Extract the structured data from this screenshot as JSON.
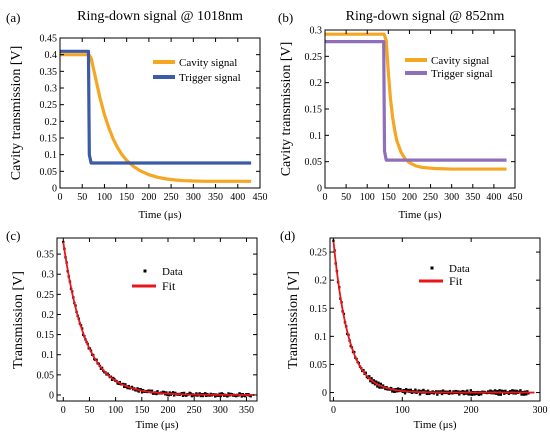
{
  "chart_data": [
    {
      "panel": "(a)",
      "type": "line",
      "title": "Ring-down signal @ 1018nm",
      "xlabel": "Time (μs)",
      "ylabel": "Cavity transmission  [V]",
      "xlim": [
        0,
        450
      ],
      "ylim": [
        0,
        0.45
      ],
      "xticks": [
        0,
        50,
        100,
        150,
        200,
        250,
        300,
        350,
        400,
        450
      ],
      "yticks": [
        0,
        0.05,
        0.1,
        0.15,
        0.2,
        0.25,
        0.3,
        0.35,
        0.4,
        0.45
      ],
      "legend_position": "top-right",
      "series": [
        {
          "name": "Cavity signal",
          "color": "#F5A623",
          "x": [
            0,
            65,
            70,
            80,
            90,
            100,
            110,
            120,
            130,
            140,
            150,
            165,
            180,
            200,
            220,
            240,
            260,
            280,
            300,
            330,
            360,
            390,
            430
          ],
          "y": [
            0.4,
            0.4,
            0.39,
            0.33,
            0.27,
            0.22,
            0.18,
            0.146,
            0.12,
            0.099,
            0.083,
            0.065,
            0.052,
            0.04,
            0.032,
            0.027,
            0.024,
            0.022,
            0.021,
            0.02,
            0.02,
            0.02,
            0.02
          ]
        },
        {
          "name": "Trigger signal",
          "color": "#3B5BA9",
          "x": [
            0,
            64,
            66,
            70,
            430
          ],
          "y": [
            0.41,
            0.41,
            0.1,
            0.075,
            0.075
          ]
        }
      ]
    },
    {
      "panel": "(b)",
      "type": "line",
      "title": "Ring-down signal @ 852nm",
      "xlabel": "Time (μs)",
      "ylabel": "Cavity transmission  [V]",
      "xlim": [
        0,
        450
      ],
      "ylim": [
        0,
        0.3
      ],
      "xticks": [
        0,
        50,
        100,
        150,
        200,
        250,
        300,
        350,
        400,
        450
      ],
      "yticks": [
        0,
        0.05,
        0.1,
        0.15,
        0.2,
        0.25,
        0.3
      ],
      "legend_position": "top-right",
      "series": [
        {
          "name": "Cavity signal",
          "color": "#F5A623",
          "x": [
            0,
            140,
            145,
            150,
            155,
            160,
            165,
            170,
            180,
            190,
            200,
            215,
            230,
            260,
            300,
            350,
            400,
            430
          ],
          "y": [
            0.292,
            0.292,
            0.28,
            0.22,
            0.17,
            0.135,
            0.11,
            0.09,
            0.068,
            0.055,
            0.048,
            0.042,
            0.039,
            0.037,
            0.036,
            0.036,
            0.036,
            0.036
          ]
        },
        {
          "name": "Trigger signal",
          "color": "#8E6FB8",
          "x": [
            0,
            139,
            141,
            145,
            430
          ],
          "y": [
            0.278,
            0.278,
            0.07,
            0.053,
            0.053
          ]
        }
      ]
    },
    {
      "panel": "(c)",
      "type": "scatter",
      "xlabel": "Time (μs)",
      "ylabel": "Transmission  [V]",
      "xlim": [
        -12,
        370
      ],
      "ylim": [
        -0.015,
        0.39
      ],
      "xticks": [
        0,
        50,
        100,
        150,
        200,
        250,
        300,
        350
      ],
      "yticks": [
        0,
        0.05,
        0.1,
        0.15,
        0.2,
        0.25,
        0.3,
        0.35
      ],
      "legend_position": "top-center",
      "fit": {
        "model": "exponential",
        "amplitude": 0.38,
        "tau": 42
      },
      "series": [
        {
          "name": "Data",
          "color": "#000000",
          "x_range": [
            0,
            360
          ],
          "amplitude": 0.38,
          "tau": 42
        },
        {
          "name": "Fit",
          "color": "#E8161B",
          "x_range": [
            0,
            365
          ]
        }
      ]
    },
    {
      "panel": "(d)",
      "type": "scatter",
      "xlabel": "Time (μs)",
      "ylabel": "Transmission  [V]",
      "xlim": [
        -5,
        300
      ],
      "ylim": [
        -0.015,
        0.275
      ],
      "xticks": [
        0,
        100,
        200,
        300
      ],
      "yticks": [
        0,
        0.05,
        0.1,
        0.15,
        0.2,
        0.25
      ],
      "legend_position": "top-center",
      "fit": {
        "model": "exponential",
        "amplitude": 0.27,
        "tau": 22
      },
      "series": [
        {
          "name": "Data",
          "color": "#000000",
          "x_range": [
            0,
            285
          ],
          "amplitude": 0.27,
          "tau": 22
        },
        {
          "name": "Fit",
          "color": "#E8161B",
          "x_range": [
            0,
            292
          ]
        }
      ]
    }
  ]
}
